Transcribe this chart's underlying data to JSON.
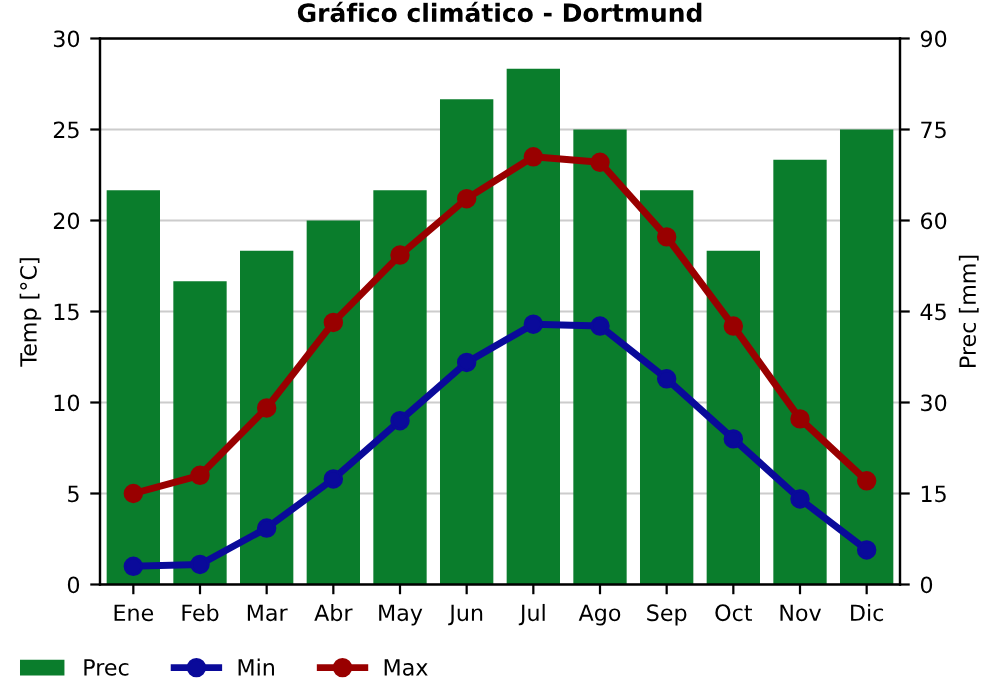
{
  "chart_data": {
    "type": "bar",
    "title": "Gráfico climático - Dortmund",
    "ylabel": "Temp [°C]",
    "y2label": "Prec [mm]",
    "categories": [
      "Ene",
      "Feb",
      "Mar",
      "Abr",
      "May",
      "Jun",
      "Jul",
      "Ago",
      "Sep",
      "Oct",
      "Nov",
      "Dic"
    ],
    "series": [
      {
        "name": "Prec",
        "axis": "y2",
        "color": "#0a7d2c",
        "values": [
          65,
          50,
          55,
          60,
          65,
          80,
          85,
          75,
          65,
          55,
          70,
          75
        ]
      },
      {
        "name": "Min",
        "type": "line",
        "color": "#0a0a9a",
        "values": [
          1.0,
          1.1,
          3.1,
          5.8,
          9.0,
          12.2,
          14.3,
          14.2,
          11.3,
          8.0,
          4.7,
          1.9
        ]
      },
      {
        "name": "Max",
        "type": "line",
        "color": "#990000",
        "values": [
          5.0,
          6.0,
          9.7,
          14.4,
          18.1,
          21.2,
          23.5,
          23.2,
          19.1,
          14.2,
          9.1,
          5.7
        ]
      }
    ],
    "ylim": [
      0,
      30
    ],
    "yticks": [
      0,
      5,
      10,
      15,
      20,
      25,
      30
    ],
    "y2lim": [
      0,
      90
    ],
    "y2ticks": [
      0,
      15,
      30,
      45,
      60,
      75,
      90
    ],
    "grid": "y",
    "legend": "bottom",
    "marker": "circle",
    "line_style": "solid"
  }
}
